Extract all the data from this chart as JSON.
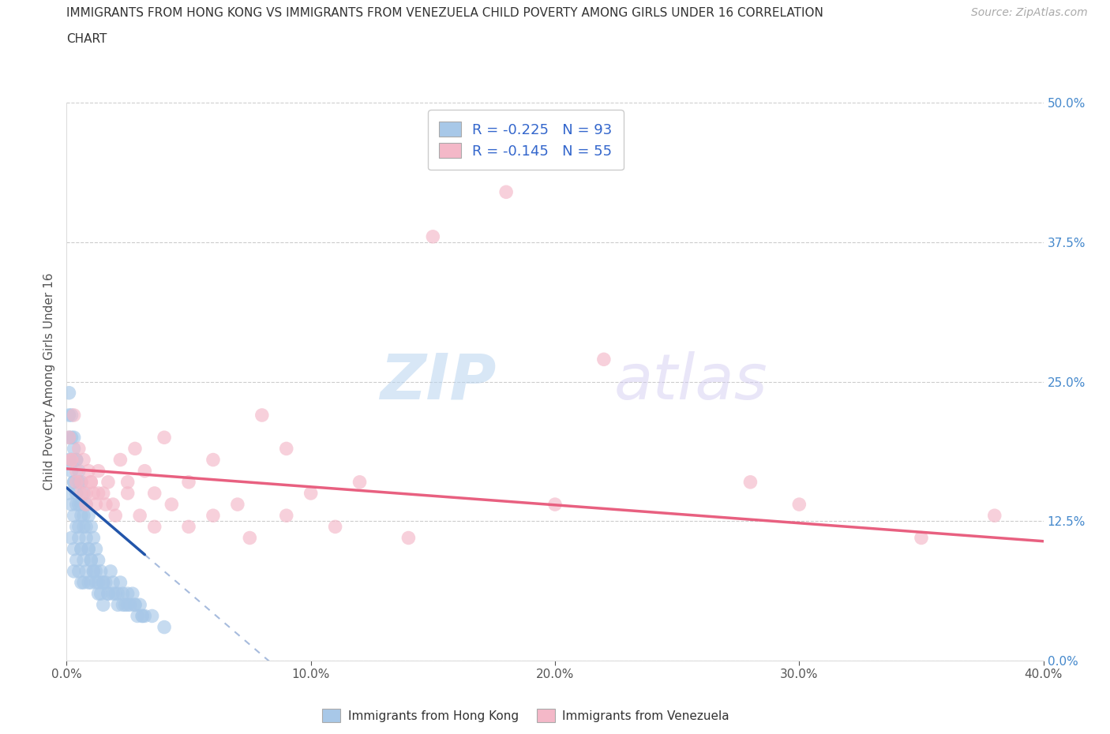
{
  "title_line1": "IMMIGRANTS FROM HONG KONG VS IMMIGRANTS FROM VENEZUELA CHILD POVERTY AMONG GIRLS UNDER 16 CORRELATION",
  "title_line2": "CHART",
  "source": "Source: ZipAtlas.com",
  "ylabel": "Child Poverty Among Girls Under 16",
  "watermark_zip": "ZIP",
  "watermark_atlas": "atlas",
  "hk_color": "#a8c8e8",
  "ven_color": "#f4b8c8",
  "hk_line_color": "#2255aa",
  "ven_line_color": "#e86080",
  "hk_R": -0.225,
  "hk_N": 93,
  "ven_R": -0.145,
  "ven_N": 55,
  "xmin": 0.0,
  "xmax": 0.4,
  "ymin": 0.0,
  "ymax": 0.5,
  "x_ticks": [
    0.0,
    0.1,
    0.2,
    0.3,
    0.4
  ],
  "x_tick_labels": [
    "0.0%",
    "10.0%",
    "20.0%",
    "30.0%",
    "40.0%"
  ],
  "y_ticks": [
    0.0,
    0.125,
    0.25,
    0.375,
    0.5
  ],
  "y_tick_labels": [
    "0.0%",
    "12.5%",
    "25.0%",
    "37.5%",
    "50.0%"
  ],
  "hk_x": [
    0.001,
    0.001,
    0.001,
    0.002,
    0.002,
    0.002,
    0.002,
    0.003,
    0.003,
    0.003,
    0.003,
    0.003,
    0.004,
    0.004,
    0.004,
    0.004,
    0.005,
    0.005,
    0.005,
    0.005,
    0.006,
    0.006,
    0.006,
    0.006,
    0.007,
    0.007,
    0.007,
    0.007,
    0.008,
    0.008,
    0.008,
    0.009,
    0.009,
    0.009,
    0.01,
    0.01,
    0.01,
    0.011,
    0.011,
    0.012,
    0.012,
    0.013,
    0.013,
    0.014,
    0.014,
    0.015,
    0.015,
    0.016,
    0.017,
    0.018,
    0.019,
    0.02,
    0.021,
    0.022,
    0.023,
    0.024,
    0.025,
    0.026,
    0.027,
    0.028,
    0.029,
    0.03,
    0.031,
    0.032,
    0.001,
    0.001,
    0.002,
    0.002,
    0.003,
    0.003,
    0.004,
    0.004,
    0.005,
    0.005,
    0.006,
    0.006,
    0.007,
    0.008,
    0.009,
    0.01,
    0.011,
    0.012,
    0.013,
    0.015,
    0.017,
    0.019,
    0.021,
    0.023,
    0.025,
    0.028,
    0.031,
    0.035,
    0.04
  ],
  "hk_y": [
    0.22,
    0.18,
    0.15,
    0.2,
    0.17,
    0.14,
    0.11,
    0.19,
    0.16,
    0.13,
    0.1,
    0.08,
    0.18,
    0.15,
    0.12,
    0.09,
    0.17,
    0.14,
    0.11,
    0.08,
    0.16,
    0.13,
    0.1,
    0.07,
    0.15,
    0.12,
    0.09,
    0.07,
    0.14,
    0.11,
    0.08,
    0.13,
    0.1,
    0.07,
    0.12,
    0.09,
    0.07,
    0.11,
    0.08,
    0.1,
    0.07,
    0.09,
    0.06,
    0.08,
    0.06,
    0.07,
    0.05,
    0.07,
    0.06,
    0.08,
    0.07,
    0.06,
    0.05,
    0.07,
    0.06,
    0.05,
    0.06,
    0.05,
    0.06,
    0.05,
    0.04,
    0.05,
    0.04,
    0.04,
    0.24,
    0.2,
    0.22,
    0.18,
    0.2,
    0.16,
    0.18,
    0.14,
    0.16,
    0.12,
    0.14,
    0.1,
    0.13,
    0.12,
    0.1,
    0.09,
    0.08,
    0.08,
    0.07,
    0.07,
    0.06,
    0.06,
    0.06,
    0.05,
    0.05,
    0.05,
    0.04,
    0.04,
    0.03
  ],
  "ven_x": [
    0.001,
    0.002,
    0.003,
    0.004,
    0.005,
    0.006,
    0.007,
    0.008,
    0.009,
    0.01,
    0.011,
    0.012,
    0.013,
    0.015,
    0.017,
    0.019,
    0.022,
    0.025,
    0.028,
    0.032,
    0.036,
    0.04,
    0.05,
    0.06,
    0.07,
    0.08,
    0.09,
    0.1,
    0.12,
    0.15,
    0.18,
    0.22,
    0.28,
    0.3,
    0.35,
    0.002,
    0.004,
    0.006,
    0.008,
    0.01,
    0.013,
    0.016,
    0.02,
    0.025,
    0.03,
    0.036,
    0.043,
    0.05,
    0.06,
    0.075,
    0.09,
    0.11,
    0.14,
    0.2,
    0.38
  ],
  "ven_y": [
    0.2,
    0.18,
    0.22,
    0.17,
    0.19,
    0.16,
    0.18,
    0.15,
    0.17,
    0.16,
    0.15,
    0.14,
    0.17,
    0.15,
    0.16,
    0.14,
    0.18,
    0.16,
    0.19,
    0.17,
    0.15,
    0.2,
    0.16,
    0.18,
    0.14,
    0.22,
    0.19,
    0.15,
    0.16,
    0.38,
    0.42,
    0.27,
    0.16,
    0.14,
    0.11,
    0.18,
    0.16,
    0.15,
    0.14,
    0.16,
    0.15,
    0.14,
    0.13,
    0.15,
    0.13,
    0.12,
    0.14,
    0.12,
    0.13,
    0.11,
    0.13,
    0.12,
    0.11,
    0.14,
    0.13
  ],
  "hk_line_x0": 0.0,
  "hk_line_y0": 0.155,
  "hk_line_x1": 0.032,
  "hk_line_y1": 0.095,
  "ven_line_x0": 0.0,
  "ven_line_y0": 0.172,
  "ven_line_x1": 0.4,
  "ven_line_y1": 0.107
}
